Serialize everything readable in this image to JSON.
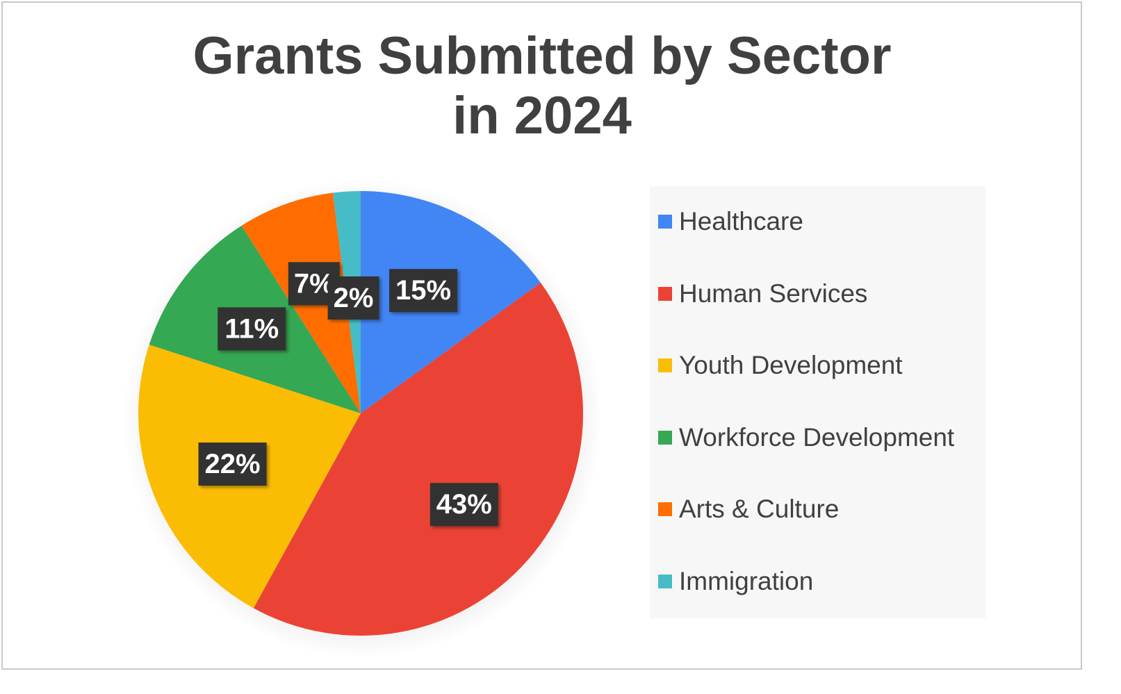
{
  "chart_data": {
    "type": "pie",
    "title": "Grants Submitted by Sector in 2024",
    "title_lines": [
      "Grants Submitted by Sector",
      "in 2024"
    ],
    "categories": [
      "Healthcare",
      "Human Services",
      "Youth Development",
      "Workforce Development",
      "Arts & Culture",
      "Immigration"
    ],
    "values": [
      15,
      43,
      22,
      11,
      7,
      2
    ],
    "labels": [
      "15%",
      "43%",
      "22%",
      "11%",
      "7%",
      "2%"
    ],
    "colors": [
      "#4285f4",
      "#ea4335",
      "#fbbc04",
      "#34a853",
      "#ff6d01",
      "#46bdc6"
    ],
    "legend_position": "right",
    "label_style": {
      "background": "#333333",
      "text_color": "#ffffff"
    }
  }
}
